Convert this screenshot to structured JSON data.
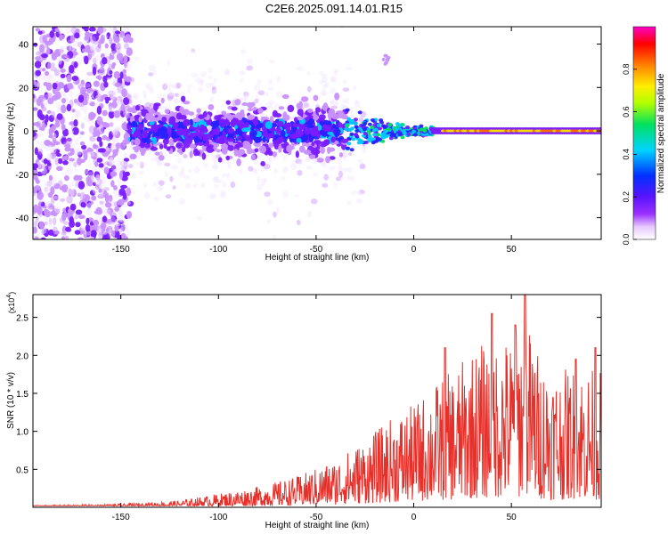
{
  "title": "C2E6.2025.091.14.01.R15",
  "colors": {
    "snr_line": "#e8302a",
    "axis": "#000000"
  },
  "chart_data": [
    {
      "type": "heatmap",
      "xlabel": "Height of straight line (km)",
      "ylabel": "Frequency (Hz)",
      "xlim": [
        -195,
        96
      ],
      "ylim": [
        -50,
        48
      ],
      "x_ticks": [
        -150,
        -100,
        -50,
        0,
        50
      ],
      "y_ticks": [
        -40,
        -20,
        0,
        20,
        40
      ],
      "colorbar": {
        "label": "Normalized spectral amplitude",
        "range": [
          0,
          1
        ],
        "ticks": [
          0.0,
          0.2,
          0.4,
          0.6,
          0.8
        ],
        "colormap": "rainbow (white-purple-blue-cyan-green-yellow-orange-red-magenta)"
      },
      "features": {
        "band_center_hz": 0,
        "noisy_region_km": [
          -195,
          -145
        ],
        "broad_band_km": [
          -145,
          -35
        ],
        "broad_band_halfwidth_hz": 10,
        "narrow_line_km": [
          -35,
          96
        ],
        "narrow_line_halfwidth_hz": 2,
        "isolated_blob": {
          "x": -14,
          "y": 32
        }
      }
    },
    {
      "type": "line",
      "xlabel": "Height of straight line (km)",
      "ylabel": "SNR (10 * v/v)",
      "y_multiplier_label": "(x10",
      "y_multiplier_exp": "4",
      "xlim": [
        -195,
        96
      ],
      "ylim": [
        0,
        2.8
      ],
      "x_ticks": [
        -150,
        -100,
        -50,
        0,
        50
      ],
      "y_ticks": [
        0.5,
        1.0,
        1.5,
        2.0,
        2.5
      ],
      "series": [
        {
          "envelope": [
            [
              -195,
              0.03
            ],
            [
              -150,
              0.05
            ],
            [
              -120,
              0.1
            ],
            [
              -100,
              0.2
            ],
            [
              -80,
              0.3
            ],
            [
              -60,
              0.45
            ],
            [
              -40,
              0.7
            ],
            [
              -20,
              1.1
            ],
            [
              -10,
              1.35
            ],
            [
              0,
              1.5
            ],
            [
              10,
              1.8
            ],
            [
              20,
              2.0
            ],
            [
              30,
              2.3
            ],
            [
              40,
              2.5
            ],
            [
              50,
              2.5
            ],
            [
              57,
              2.8
            ],
            [
              65,
              2.2
            ],
            [
              75,
              2.0
            ],
            [
              85,
              2.1
            ],
            [
              96,
              2.0
            ]
          ],
          "peaks": [
            [
              16,
              2.1
            ],
            [
              40,
              2.55
            ],
            [
              57,
              2.8
            ],
            [
              52,
              2.4
            ],
            [
              93,
              2.1
            ],
            [
              83,
              1.95
            ]
          ]
        }
      ]
    }
  ]
}
